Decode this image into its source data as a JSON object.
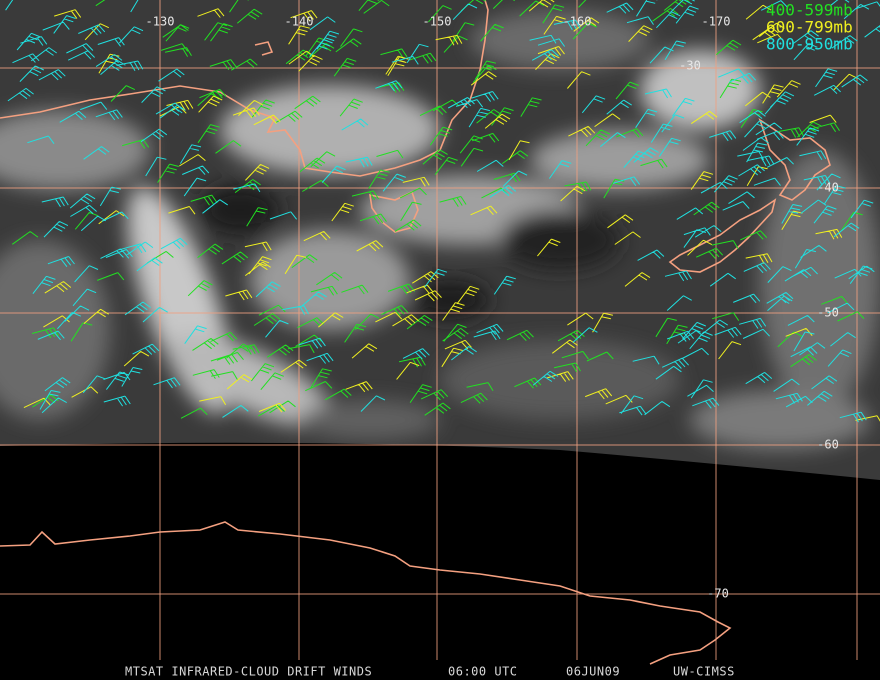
{
  "map": {
    "longitude_labels": [
      "-130",
      "-140",
      "-150",
      "-160",
      "-170"
    ],
    "latitude_labels": [
      "-30",
      "-40",
      "-50",
      "-60",
      "-70"
    ],
    "legend": [
      {
        "label": "400-599mb",
        "color": "#22e022"
      },
      {
        "label": "600-799mb",
        "color": "#f0f020"
      },
      {
        "label": "800-950mb",
        "color": "#20e0e0"
      }
    ],
    "footer": [
      "MTSAT INFRARED-CLOUD DRIFT WINDS",
      "06:00 UTC",
      "06JUN09",
      "UW-CIMSS"
    ]
  }
}
